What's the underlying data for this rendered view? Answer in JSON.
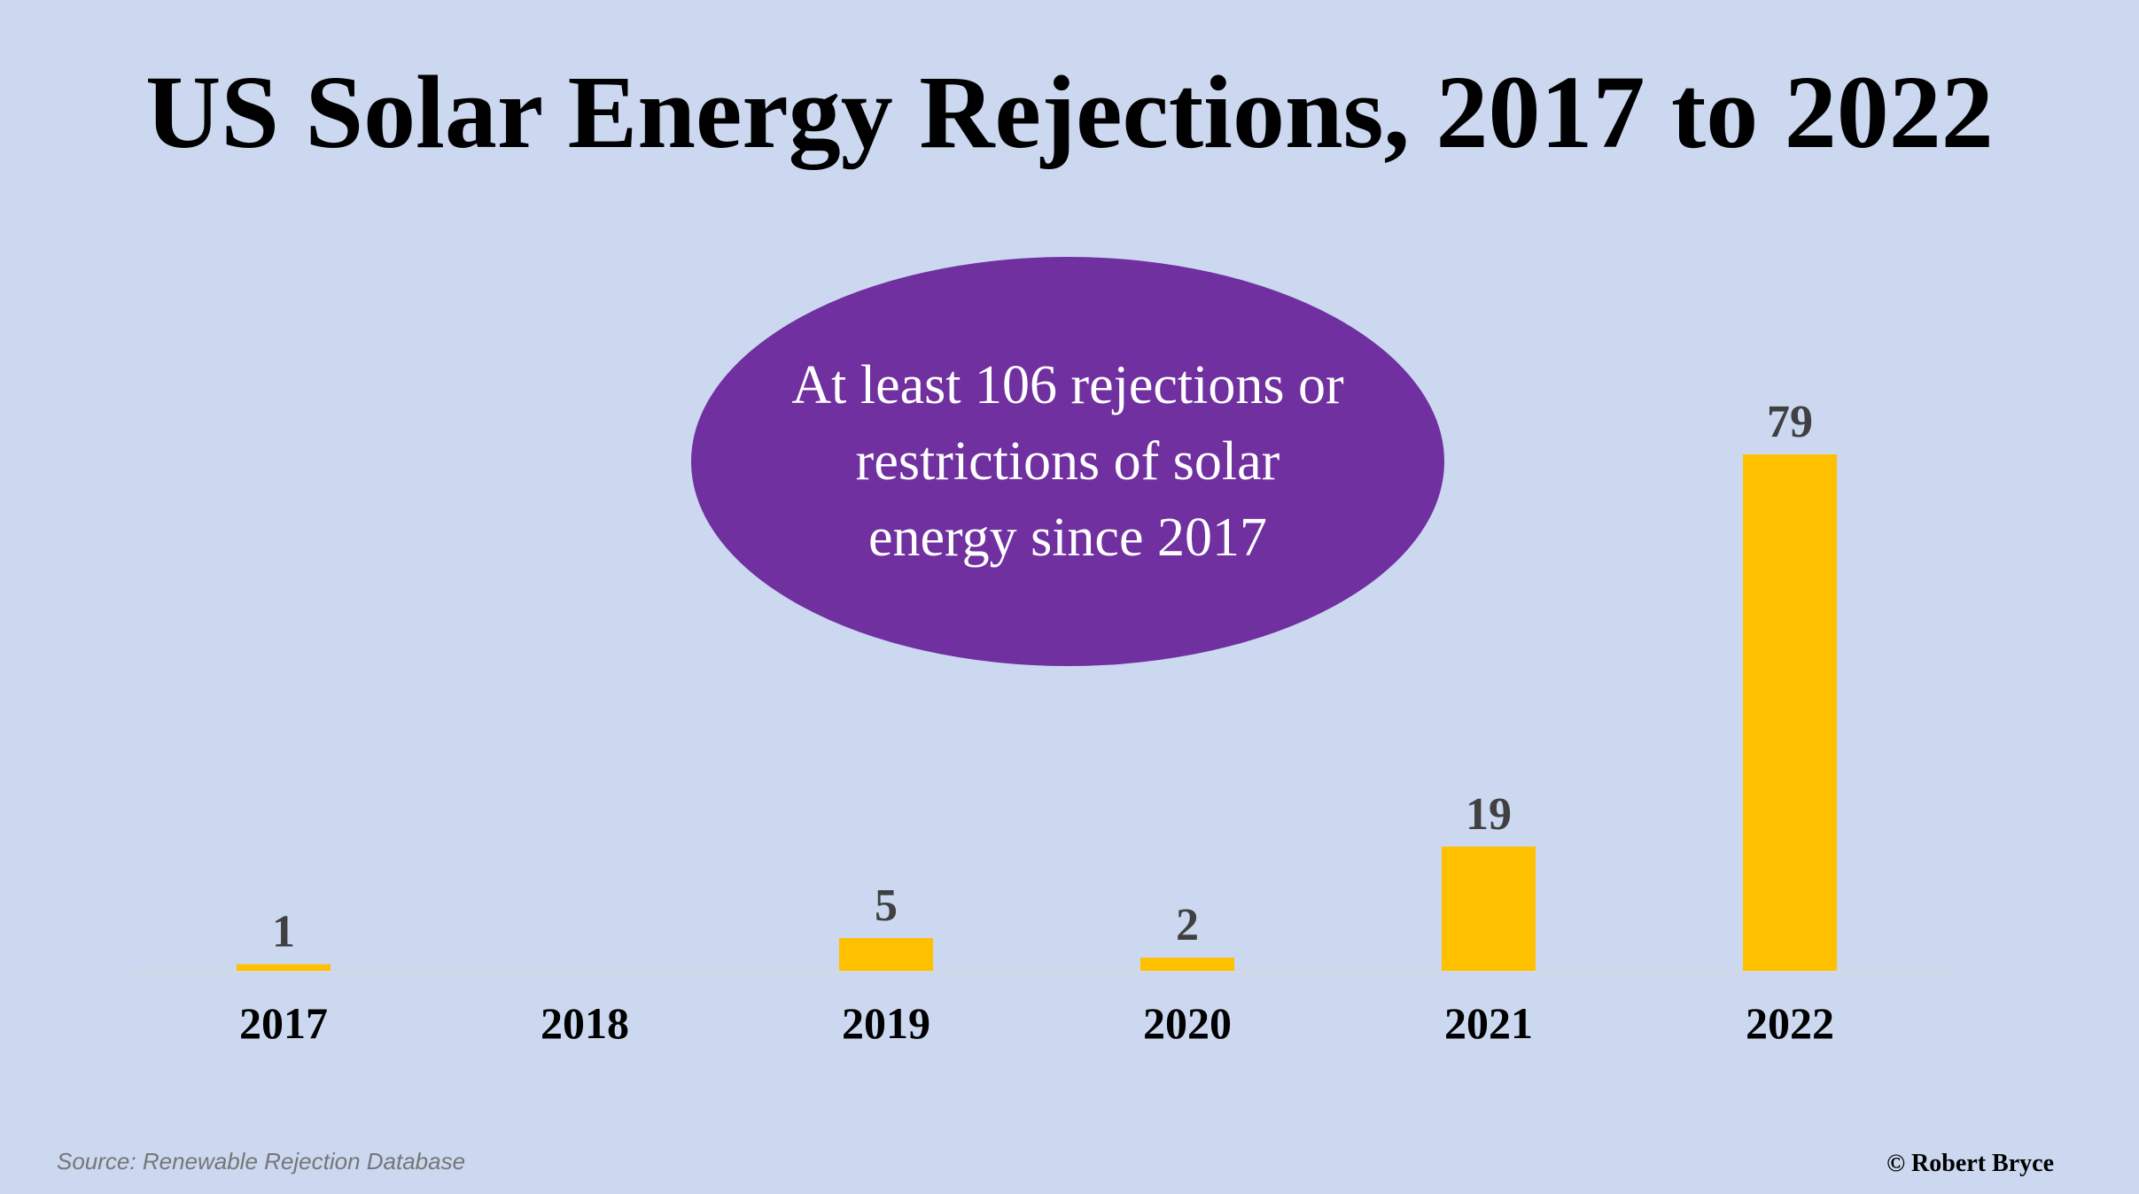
{
  "chart_data": {
    "type": "bar",
    "title": "US Solar Energy Rejections, 2017 to 2022",
    "categories": [
      "2017",
      "2018",
      "2019",
      "2020",
      "2021",
      "2022"
    ],
    "values": [
      1,
      0,
      5,
      2,
      19,
      79
    ],
    "data_labels": [
      "1",
      "",
      "5",
      "2",
      "19",
      "79"
    ],
    "ylim": [
      0,
      79
    ],
    "grid": false,
    "legend": "none",
    "bar_color": "#ffc000",
    "annotation": "At least 106 rejections or restrictions of solar energy since 2017"
  },
  "colors": {
    "background": "#cbd8f0",
    "bubble": "#7030a0",
    "bar": "#ffc000",
    "axis_line": "#d9d9d9"
  },
  "footer": {
    "source": "Source: Renewable Rejection Database",
    "copyright": "© Robert Bryce"
  }
}
